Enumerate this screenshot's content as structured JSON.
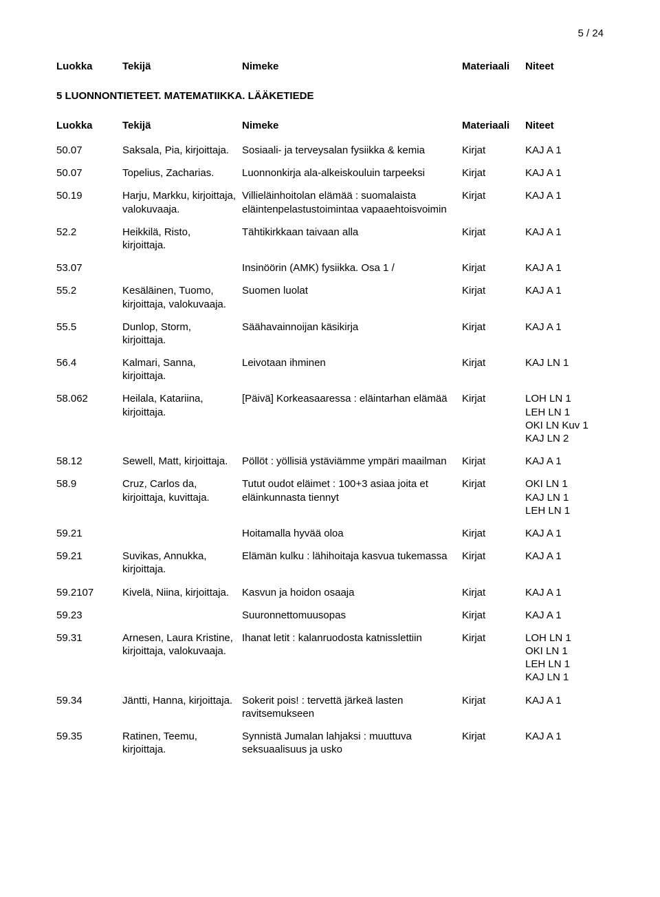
{
  "page_number": "5 / 24",
  "headers": {
    "luokka": "Luokka",
    "tekija": "Tekijä",
    "nimeke": "Nimeke",
    "materiaali": "Materiaali",
    "niteet": "Niteet"
  },
  "section_title": "5 LUONNONTIETEET. MATEMATIIKKA. LÄÄKETIEDE",
  "rows": [
    {
      "luokka": "50.07",
      "tekija": "Saksala, Pia, kirjoittaja.",
      "nimeke": "Sosiaali- ja terveysalan fysiikka & kemia",
      "materiaali": "Kirjat",
      "niteet": [
        "KAJ A 1"
      ]
    },
    {
      "luokka": "50.07",
      "tekija": "Topelius, Zacharias.",
      "nimeke": "Luonnonkirja ala-alkeiskouluin tarpeeksi",
      "materiaali": "Kirjat",
      "niteet": [
        "KAJ A 1"
      ]
    },
    {
      "luokka": "50.19",
      "tekija": "Harju, Markku, kirjoittaja, valokuvaaja.",
      "nimeke": "Villieläinhoitolan elämää : suomalaista eläintenpelastustoimintaa vapaaehtoisvoimin",
      "materiaali": "Kirjat",
      "niteet": [
        "KAJ A 1"
      ]
    },
    {
      "luokka": "52.2",
      "tekija": "Heikkilä, Risto, kirjoittaja.",
      "nimeke": "Tähtikirkkaan taivaan alla",
      "materiaali": "Kirjat",
      "niteet": [
        "KAJ A 1"
      ]
    },
    {
      "luokka": "53.07",
      "tekija": "",
      "nimeke": "Insinöörin (AMK) fysiikka. Osa 1 /",
      "materiaali": "Kirjat",
      "niteet": [
        "KAJ A 1"
      ]
    },
    {
      "luokka": "55.2",
      "tekija": "Kesäläinen, Tuomo, kirjoittaja, valokuvaaja.",
      "nimeke": "Suomen luolat",
      "materiaali": "Kirjat",
      "niteet": [
        "KAJ A 1"
      ]
    },
    {
      "luokka": "55.5",
      "tekija": "Dunlop, Storm, kirjoittaja.",
      "nimeke": "Säähavainnoijan käsikirja",
      "materiaali": "Kirjat",
      "niteet": [
        "KAJ A 1"
      ]
    },
    {
      "luokka": "56.4",
      "tekija": "Kalmari, Sanna, kirjoittaja.",
      "nimeke": "Leivotaan ihminen",
      "materiaali": "Kirjat",
      "niteet": [
        "KAJ LN 1"
      ]
    },
    {
      "luokka": "58.062",
      "tekija": "Heilala, Katariina, kirjoittaja.",
      "nimeke": "[Päivä] Korkeasaaressa : eläintarhan elämää",
      "materiaali": "Kirjat",
      "niteet": [
        "LOH LN 1",
        "LEH LN 1",
        "OKI LN Kuv 1",
        "KAJ LN 2"
      ]
    },
    {
      "luokka": "58.12",
      "tekija": "Sewell, Matt, kirjoittaja.",
      "nimeke": "Pöllöt : yöllisiä ystäviämme ympäri maailman",
      "materiaali": "Kirjat",
      "niteet": [
        "KAJ A 1"
      ]
    },
    {
      "luokka": "58.9",
      "tekija": "Cruz, Carlos da, kirjoittaja, kuvittaja.",
      "nimeke": "Tutut oudot eläimet : 100+3 asiaa joita et eläinkunnasta tiennyt",
      "materiaali": "Kirjat",
      "niteet": [
        "OKI LN 1",
        "KAJ LN 1",
        "LEH LN 1"
      ]
    },
    {
      "luokka": "59.21",
      "tekija": "",
      "nimeke": "Hoitamalla hyvää oloa",
      "materiaali": "Kirjat",
      "niteet": [
        "KAJ A 1"
      ]
    },
    {
      "luokka": "59.21",
      "tekija": "Suvikas, Annukka, kirjoittaja.",
      "nimeke": "Elämän kulku : lähihoitaja kasvua tukemassa",
      "materiaali": "Kirjat",
      "niteet": [
        "KAJ A 1"
      ]
    },
    {
      "luokka": "59.2107",
      "tekija": "Kivelä, Niina, kirjoittaja.",
      "nimeke": "Kasvun ja hoidon osaaja",
      "materiaali": "Kirjat",
      "niteet": [
        "KAJ A 1"
      ]
    },
    {
      "luokka": "59.23",
      "tekija": "",
      "nimeke": "Suuronnettomuusopas",
      "materiaali": "Kirjat",
      "niteet": [
        "KAJ A 1"
      ]
    },
    {
      "luokka": "59.31",
      "tekija": "Arnesen, Laura Kristine, kirjoittaja, valokuvaaja.",
      "nimeke": "Ihanat letit : kalanruodosta katnisslettiin",
      "materiaali": "Kirjat",
      "niteet": [
        "LOH LN 1",
        "OKI LN 1",
        "LEH LN 1",
        "KAJ LN 1"
      ]
    },
    {
      "luokka": "59.34",
      "tekija": "Jäntti, Hanna, kirjoittaja.",
      "nimeke": "Sokerit pois! : tervettä järkeä lasten ravitsemukseen",
      "materiaali": "Kirjat",
      "niteet": [
        "KAJ A 1"
      ]
    },
    {
      "luokka": "59.35",
      "tekija": "Ratinen, Teemu, kirjoittaja.",
      "nimeke": "Synnistä Jumalan lahjaksi : muuttuva seksuaalisuus ja usko",
      "materiaali": "Kirjat",
      "niteet": [
        "KAJ A 1"
      ]
    }
  ]
}
